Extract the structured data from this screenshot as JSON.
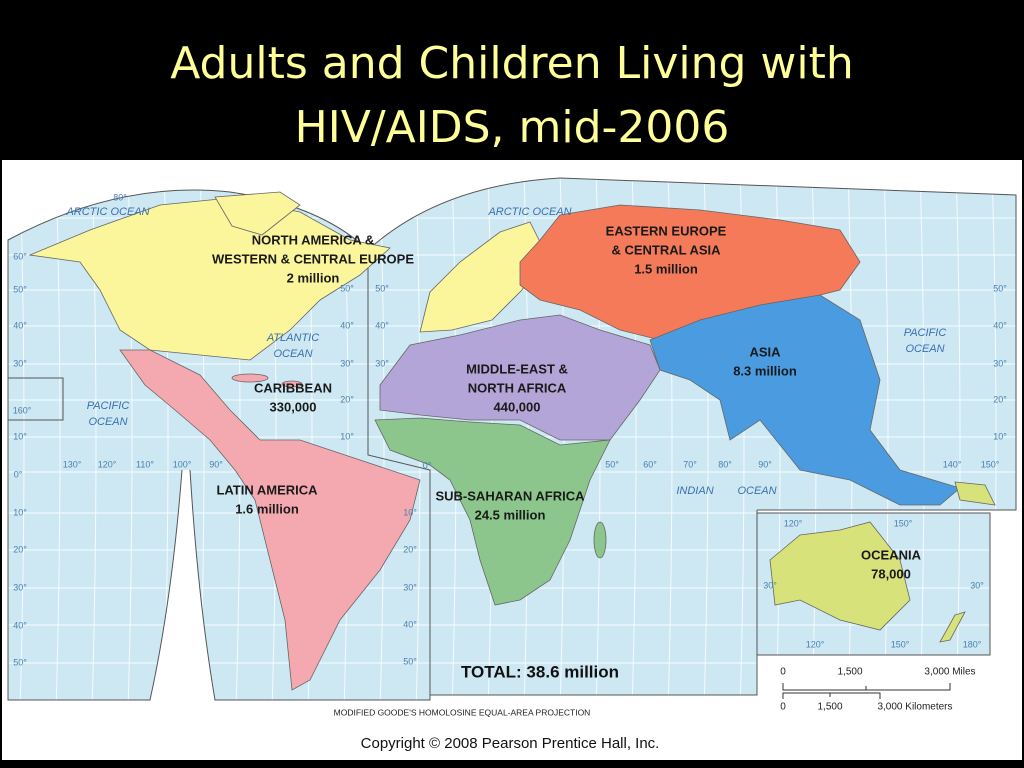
{
  "title_lines": [
    "Adults and Children Living with",
    "HIV/AIDS, mid-2006"
  ],
  "regions": [
    {
      "lines": [
        "NORTH AMERICA &",
        "WESTERN & CENTRAL EUROPE",
        "2 million"
      ]
    },
    {
      "lines": [
        "EASTERN EUROPE",
        "& CENTRAL ASIA",
        "1.5 million"
      ]
    },
    {
      "lines": [
        "ASIA",
        "8.3 million"
      ]
    },
    {
      "lines": [
        "MIDDLE-EAST &",
        "NORTH AFRICA",
        "440,000"
      ]
    },
    {
      "lines": [
        "CARIBBEAN",
        "330,000"
      ]
    },
    {
      "lines": [
        "LATIN AMERICA",
        "1.6 million"
      ]
    },
    {
      "lines": [
        "SUB-SAHARAN AFRICA",
        "24.5 million"
      ]
    },
    {
      "lines": [
        "OCEANIA",
        "78,000"
      ]
    }
  ],
  "oceans": [
    {
      "lines": [
        "ARCTIC OCEAN"
      ]
    },
    {
      "lines": [
        "ARCTIC OCEAN"
      ]
    },
    {
      "lines": [
        "ATLANTIC",
        "OCEAN"
      ]
    },
    {
      "lines": [
        "PACIFIC",
        "OCEAN"
      ]
    },
    {
      "lines": [
        "PACIFIC",
        "OCEAN"
      ]
    },
    {
      "lines": [
        "INDIAN"
      ]
    },
    {
      "lines": [
        "OCEAN"
      ]
    }
  ],
  "grid_labels": [
    "80°",
    "60°",
    "50°",
    "40°",
    "30°",
    "160°",
    "10°",
    "0°",
    "10°",
    "20°",
    "30°",
    "40°",
    "50°",
    "130°",
    "120°",
    "110°",
    "100°",
    "90°",
    "50°",
    "40°",
    "30°",
    "20°",
    "10°",
    "50°",
    "40°",
    "30°",
    "0°",
    "10°",
    "20°",
    "30°",
    "40°",
    "50°",
    "50°",
    "60°",
    "70°",
    "80°",
    "90°",
    "140°",
    "150°",
    "50°",
    "40°",
    "30°",
    "20°",
    "10°",
    "120°",
    "150°",
    "30°",
    "30°",
    "120°",
    "150°",
    "180°"
  ],
  "total": "TOTAL: 38.6 million",
  "scale": {
    "miles": [
      "0",
      "1,500",
      "3,000 Miles"
    ],
    "km": [
      "0",
      "1,500",
      "3,000 Kilometers"
    ]
  },
  "projection": "MODIFIED GOODE'S HOMOLOSINE EQUAL-AREA PROJECTION",
  "copyright": "Copyright © 2008 Pearson Prentice Hall, Inc."
}
